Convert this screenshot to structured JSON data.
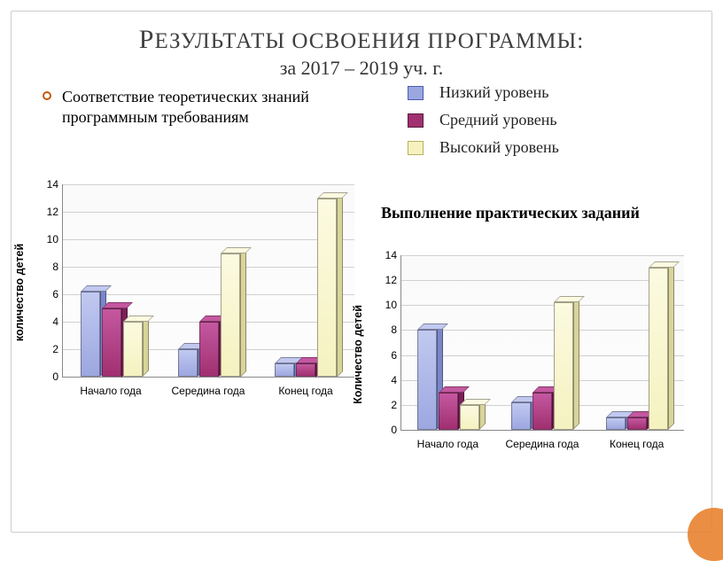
{
  "title": {
    "line1_caps": "Р",
    "line1_rest": "ЕЗУЛЬТАТЫ ОСВОЕНИЯ ПРОГРАММЫ:",
    "line2": "за 2017 – 2019 уч. г."
  },
  "bullet_text": "Соответствие теоретических знаний программным требованиям",
  "legend": {
    "items": [
      {
        "label": "Низкий уровень",
        "fill": "#9ca7e0",
        "stroke": "#4a5bb0"
      },
      {
        "label": "Средний уровень",
        "fill": "#a03070",
        "stroke": "#5a1a40"
      },
      {
        "label": "Высокий уровень",
        "fill": "#f5f2c0",
        "stroke": "#b8b060"
      }
    ]
  },
  "chart2_title": "Выполнение практических заданий",
  "colors": {
    "series": [
      {
        "front": "#9ca7e0",
        "top": "#c1c9f0",
        "side": "#7a86c9"
      },
      {
        "front": "#a03070",
        "top": "#c458a0",
        "side": "#7a2055"
      },
      {
        "front": "#f5f2c0",
        "top": "#fcfae0",
        "side": "#d8d49a"
      }
    ],
    "grid": "#d0d0d0",
    "axis": "#888888"
  },
  "chart1": {
    "ylabel": "количество детей",
    "ymax": 14,
    "ytick_step": 2,
    "categories": [
      "Начало года",
      "Середина года",
      "Конец года"
    ],
    "series_values": [
      [
        6.2,
        5,
        4
      ],
      [
        2,
        4,
        9
      ],
      [
        1,
        1,
        13
      ]
    ]
  },
  "chart2": {
    "ylabel": "Количество детей",
    "ymax": 14,
    "ytick_step": 2,
    "categories": [
      "Начало года",
      "Середина года",
      "Конец года"
    ],
    "series_values": [
      [
        8,
        3,
        2
      ],
      [
        2.2,
        3,
        10.2
      ],
      [
        1,
        1,
        13
      ]
    ]
  }
}
